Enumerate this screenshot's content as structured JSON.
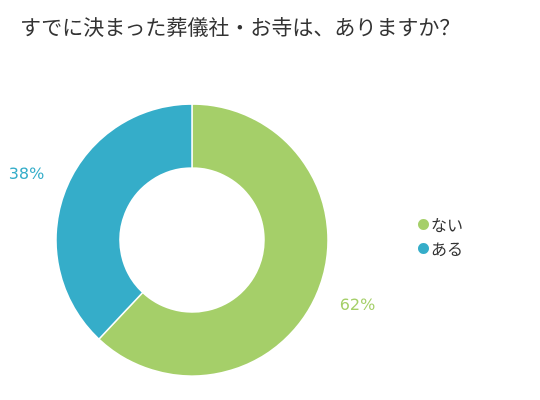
{
  "chart_data": {
    "type": "pie",
    "variant": "donut",
    "title": "すでに決まった葬儀社・お寺は、ありますか？",
    "slices": [
      {
        "label": "ない",
        "value": 62,
        "display": "62%",
        "color": "#a5cf69"
      },
      {
        "label": "ある",
        "value": 38,
        "display": "38%",
        "color": "#35adc9"
      }
    ],
    "legend_position": "right"
  }
}
